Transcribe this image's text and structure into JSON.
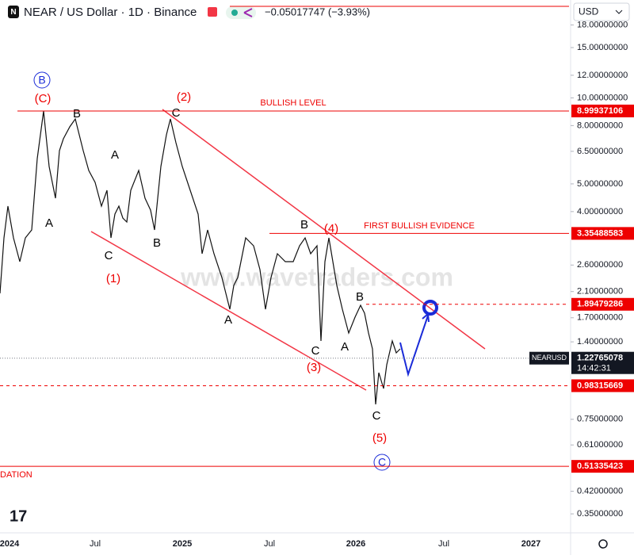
{
  "header": {
    "symbol": "NEAR / US Dollar · 1D · Binance",
    "change": "−0.05017747 (−3.93%)",
    "currency": "USD"
  },
  "price_axis": {
    "log": true,
    "ticks": [
      {
        "value": 18,
        "label": "18.00000000"
      },
      {
        "value": 15,
        "label": "15.00000000"
      },
      {
        "value": 12,
        "label": "12.00000000"
      },
      {
        "value": 10,
        "label": "10.00000000"
      },
      {
        "value": 8,
        "label": "8.00000000"
      },
      {
        "value": 6.5,
        "label": "6.50000000"
      },
      {
        "value": 5,
        "label": "5.00000000"
      },
      {
        "value": 4,
        "label": "4.00000000"
      },
      {
        "value": 2.6,
        "label": "2.60000000"
      },
      {
        "value": 2.1,
        "label": "2.10000000"
      },
      {
        "value": 1.7,
        "label": "1.70000000"
      },
      {
        "value": 1.4,
        "label": "1.40000000"
      },
      {
        "value": 0.75,
        "label": "0.75000000"
      },
      {
        "value": 0.61,
        "label": "0.61000000"
      },
      {
        "value": 0.42,
        "label": "0.42000000"
      },
      {
        "value": 0.35,
        "label": "0.35000000"
      }
    ]
  },
  "levels": [
    {
      "value": 8.99937106,
      "dashed": false
    },
    {
      "value": 3.35488583,
      "dashed": false
    },
    {
      "value": 1.89479286,
      "dashed": true
    },
    {
      "value": 0.98315669,
      "dashed": true
    },
    {
      "value": 0.51335423,
      "dashed": false
    }
  ],
  "current": {
    "symbol": "NEARUSD",
    "value": 1.22765078,
    "countdown": "14:42:31"
  },
  "level_texts": [
    "BULLISH LEVEL",
    "FIRST BULLISH EVIDENCE",
    "DATION"
  ],
  "time_axis": [
    "2024",
    "Jul",
    "2025",
    "Jul",
    "2026",
    "Jul",
    "2027"
  ],
  "annotations": [
    "(C)",
    "B",
    "B",
    "A",
    "A",
    "C",
    "(1)",
    "B",
    "(2)",
    "C",
    "A",
    "B",
    "(4)",
    "C",
    "(3)",
    "A",
    "B",
    "C",
    "(5)",
    "C"
  ],
  "watermark": "www.wavetraders.com"
}
